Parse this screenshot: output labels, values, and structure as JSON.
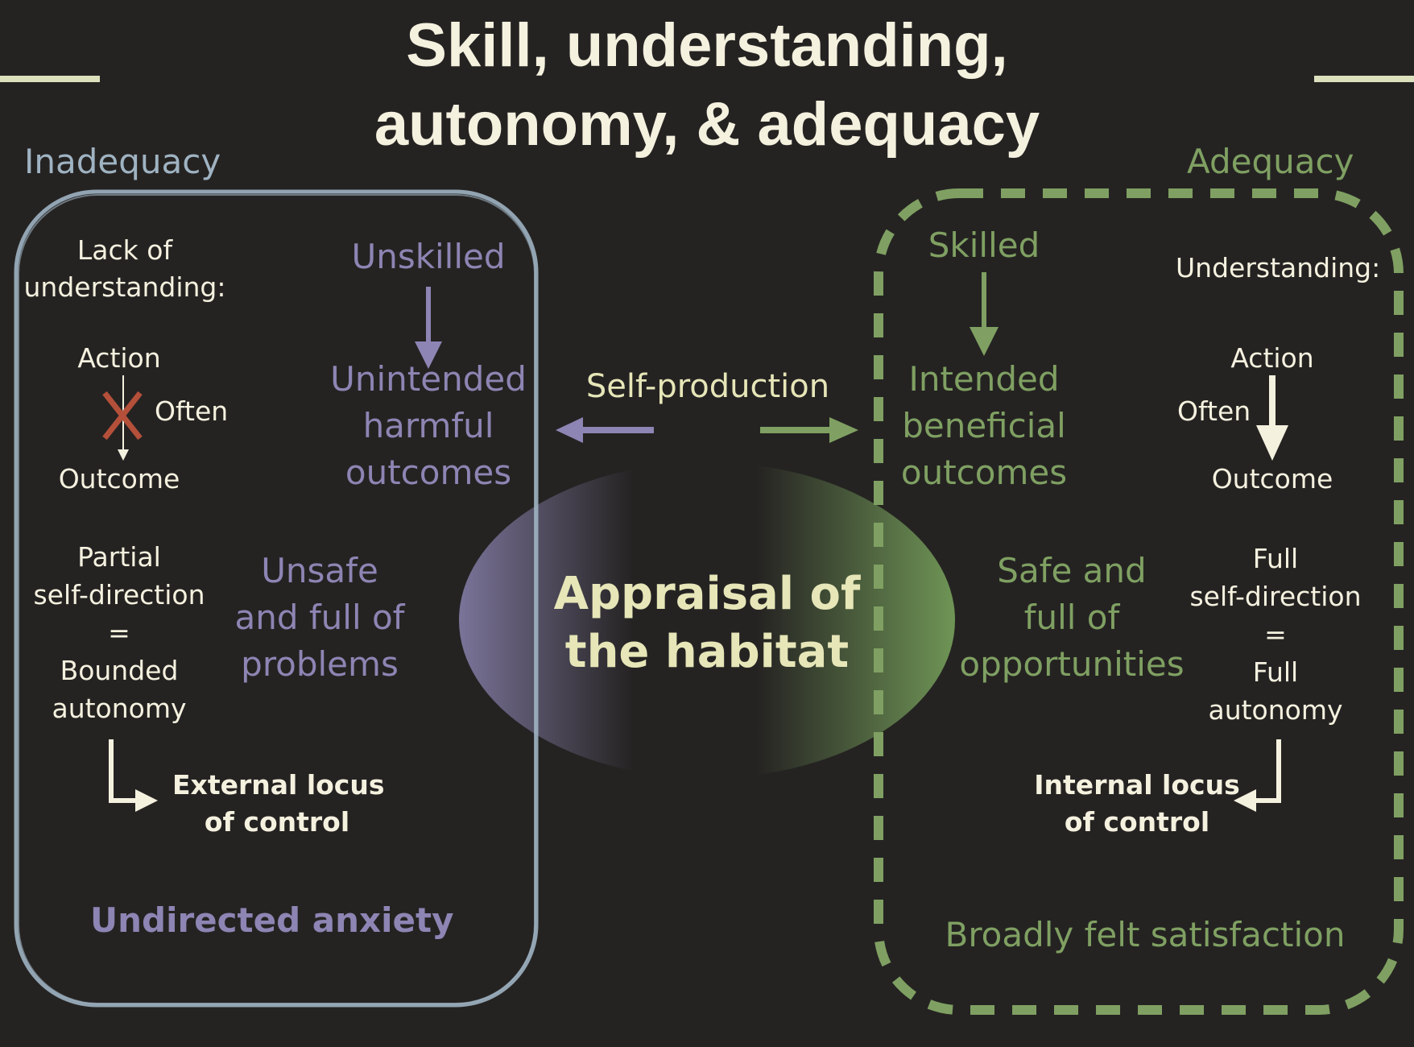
{
  "title": {
    "line1": "Skill, understanding,",
    "line2": "autonomy, & adequacy"
  },
  "inadequacy": {
    "label": "Inadequacy",
    "lack_line1": "Lack of",
    "lack_line2": "understanding:",
    "action": "Action",
    "often": "Often",
    "outcome": "Outcome",
    "unskilled": "Unskilled",
    "unintended_1": "Unintended",
    "unintended_2": "harmful",
    "unintended_3": "outcomes",
    "partial_1": "Partial",
    "partial_2": "self-direction",
    "equals": "=",
    "bounded_1": "Bounded",
    "bounded_2": "autonomy",
    "unsafe_1": "Unsafe",
    "unsafe_2": "and full of",
    "unsafe_3": "problems",
    "locus_1": "External locus",
    "locus_2": "of control",
    "feeling": "Undirected anxiety"
  },
  "center": {
    "self_production": "Self-production",
    "appraisal_1": "Appraisal of",
    "appraisal_2": "the habitat"
  },
  "adequacy": {
    "label": "Adequacy",
    "skilled": "Skilled",
    "understanding": "Understanding:",
    "intended_1": "Intended",
    "intended_2": "beneficial",
    "intended_3": "outcomes",
    "action": "Action",
    "often": "Often",
    "outcome": "Outcome",
    "safe_1": "Safe and",
    "safe_2": "full of",
    "safe_3": "opportunities",
    "full_1": "Full",
    "full_2": "self-direction",
    "equals": "=",
    "full_3": "Full",
    "full_4": "autonomy",
    "locus_1": "Internal locus",
    "locus_2": "of control",
    "feeling": "Broadly felt satisfaction"
  },
  "colors": {
    "background": "#252322",
    "cream": "#f5f1df",
    "purple": "#8d85b3",
    "green": "#7fa062",
    "greyblue": "#9fb3c2",
    "cross_red": "#b4503a"
  }
}
